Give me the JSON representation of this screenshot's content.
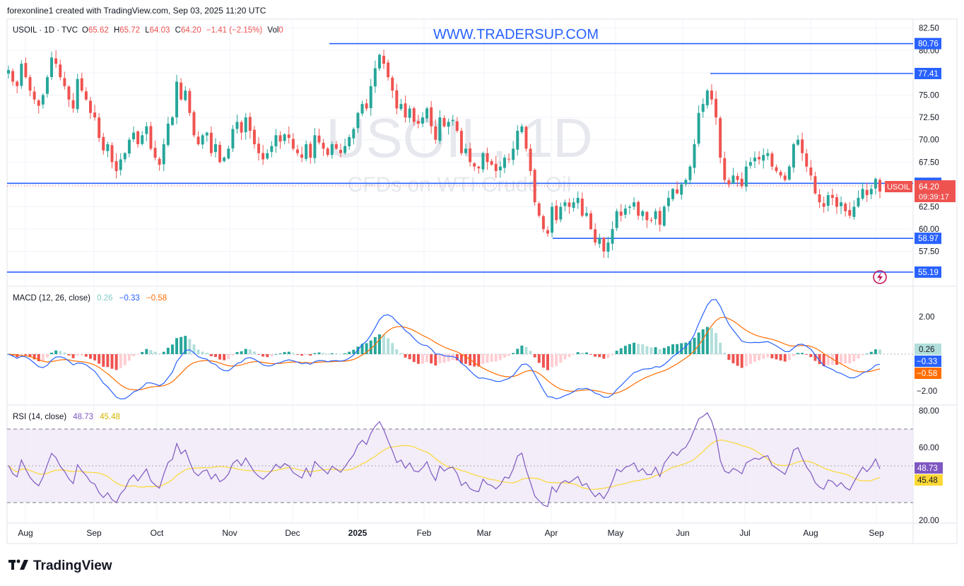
{
  "header": {
    "credit": "forexonline1 created with TradingView.com, Sep 03, 2025 11:20 UTC"
  },
  "legend": {
    "symbol": "USOIL · 1D · TVC",
    "o_label": "O",
    "o_value": "65.62",
    "h_label": "H",
    "h_value": "65.72",
    "l_label": "L",
    "l_value": "64.03",
    "c_label": "C",
    "c_value": "64.20",
    "change": "−1.41 (−2.15%)",
    "vol_label": "Vol",
    "vol_value": "0"
  },
  "watermark": {
    "site": "WWW.TRADERSUP.COM",
    "symbol": "USOIL, 1D",
    "description": "CFDs on WTI Crude Oil"
  },
  "macd": {
    "label": "MACD (12, 26, close)",
    "v1": "0.26",
    "v2": "−0.33",
    "v3": "−0.58",
    "badge_hist": "0.26",
    "badge_macd": "−0.33",
    "badge_signal": "−0.58"
  },
  "rsi": {
    "label": "RSI (14, close)",
    "v1": "48.73",
    "v2": "45.48",
    "badge_rsi": "48.73",
    "badge_ma": "45.48"
  },
  "price_badges": {
    "symbol": "USOIL",
    "last": "64.20",
    "countdown": "09:39:17"
  },
  "footer": {
    "brand": "TradingView"
  },
  "colors": {
    "up": "#26a69a",
    "down": "#ef5350",
    "level": "#2962ff",
    "macd": "#2962ff",
    "signal": "#ff6d00",
    "rsi": "#7e57c2",
    "rsi_ma": "#fdd835",
    "rsi_band": "#7e57c2"
  },
  "chart_data": [
    {
      "type": "candlestick",
      "symbol": "USOIL",
      "timeframe": "1D",
      "x_ticks": [
        "Aug",
        "Sep",
        "Oct",
        "Nov",
        "Dec",
        "2025",
        "Feb",
        "Mar",
        "Apr",
        "May",
        "Jun",
        "Jul",
        "Aug",
        "Sep"
      ],
      "y_ticks": [
        "82.50",
        "80.00",
        "77.50",
        "75.00",
        "72.50",
        "70.00",
        "67.50",
        "65.00",
        "62.50",
        "60.00",
        "57.50"
      ],
      "ylim": [
        54.0,
        83.5
      ],
      "horizontal_levels": [
        {
          "label": "80.76",
          "value": 80.76
        },
        {
          "label": "77.41",
          "value": 77.41
        },
        {
          "label": "65.13",
          "value": 65.13
        },
        {
          "label": "58.97",
          "value": 58.97
        },
        {
          "label": "55.19",
          "value": 55.19
        }
      ],
      "last_price": 64.2,
      "closes": [
        77.8,
        76.5,
        76.0,
        78.5,
        77.0,
        75.5,
        74.5,
        73.8,
        75.0,
        77.0,
        79.2,
        78.5,
        77.0,
        76.0,
        74.5,
        73.5,
        76.8,
        75.5,
        74.5,
        73.0,
        72.5,
        70.2,
        68.8,
        69.5,
        67.5,
        66.5,
        67.8,
        68.5,
        70.0,
        70.8,
        69.5,
        70.5,
        71.5,
        69.0,
        68.0,
        67.2,
        69.5,
        71.8,
        72.5,
        76.5,
        74.5,
        75.5,
        73.0,
        70.5,
        69.5,
        70.5,
        70.8,
        68.5,
        69.5,
        67.5,
        68.0,
        69.0,
        71.2,
        72.0,
        70.8,
        72.5,
        71.0,
        69.5,
        68.5,
        67.8,
        68.5,
        69.3,
        70.5,
        69.8,
        70.6,
        70.2,
        69.0,
        68.5,
        68.0,
        69.5,
        68.0,
        70.5,
        69.7,
        69.0,
        68.3,
        69.5,
        69.0,
        68.5,
        69.3,
        70.3,
        71.2,
        73.0,
        74.0,
        73.5,
        76.0,
        78.0,
        79.5,
        78.5,
        77.0,
        75.5,
        73.5,
        74.0,
        72.5,
        73.5,
        72.0,
        71.8,
        72.5,
        73.5,
        71.5,
        70.0,
        72.5,
        71.5,
        72.0,
        72.2,
        71.0,
        68.5,
        69.0,
        67.5,
        67.0,
        66.8,
        68.5,
        67.5,
        67.2,
        66.5,
        67.0,
        68.0,
        67.8,
        69.0,
        71.0,
        71.5,
        69.0,
        66.5,
        63.0,
        61.5,
        60.0,
        59.5,
        62.5,
        61.0,
        62.5,
        63.0,
        62.5,
        63.0,
        63.5,
        61.5,
        61.8,
        60.0,
        58.5,
        59.0,
        57.5,
        58.5,
        60.0,
        62.0,
        61.5,
        62.3,
        62.5,
        63.0,
        61.5,
        62.0,
        61.0,
        61.0,
        62.0,
        60.5,
        62.5,
        63.5,
        64.5,
        64.0,
        65.0,
        65.5,
        67.0,
        69.5,
        73.0,
        74.0,
        75.5,
        74.5,
        72.5,
        68.0,
        65.5,
        65.0,
        66.0,
        65.5,
        64.8,
        67.0,
        67.5,
        68.0,
        67.8,
        68.3,
        68.5,
        67.0,
        66.5,
        66.0,
        65.5,
        67.0,
        69.5,
        70.0,
        68.5,
        67.0,
        66.0,
        64.0,
        63.0,
        62.5,
        63.8,
        63.5,
        62.5,
        63.0,
        62.0,
        61.5,
        62.5,
        63.5,
        64.5,
        63.8,
        64.5,
        65.62,
        64.2
      ]
    },
    {
      "type": "line",
      "title": "MACD (12, 26, close)",
      "y_ticks": [
        "2.00",
        "−2.00"
      ],
      "series": [
        {
          "name": "Histogram",
          "last": 0.26
        },
        {
          "name": "MACD",
          "last": -0.33
        },
        {
          "name": "Signal",
          "last": -0.58
        }
      ]
    },
    {
      "type": "line",
      "title": "RSI (14, close)",
      "y_ticks": [
        "80.00",
        "60.00",
        "20.00"
      ],
      "bands": [
        70,
        30
      ],
      "series": [
        {
          "name": "RSI",
          "last": 48.73
        },
        {
          "name": "RSI-based MA",
          "last": 45.48
        }
      ]
    }
  ]
}
